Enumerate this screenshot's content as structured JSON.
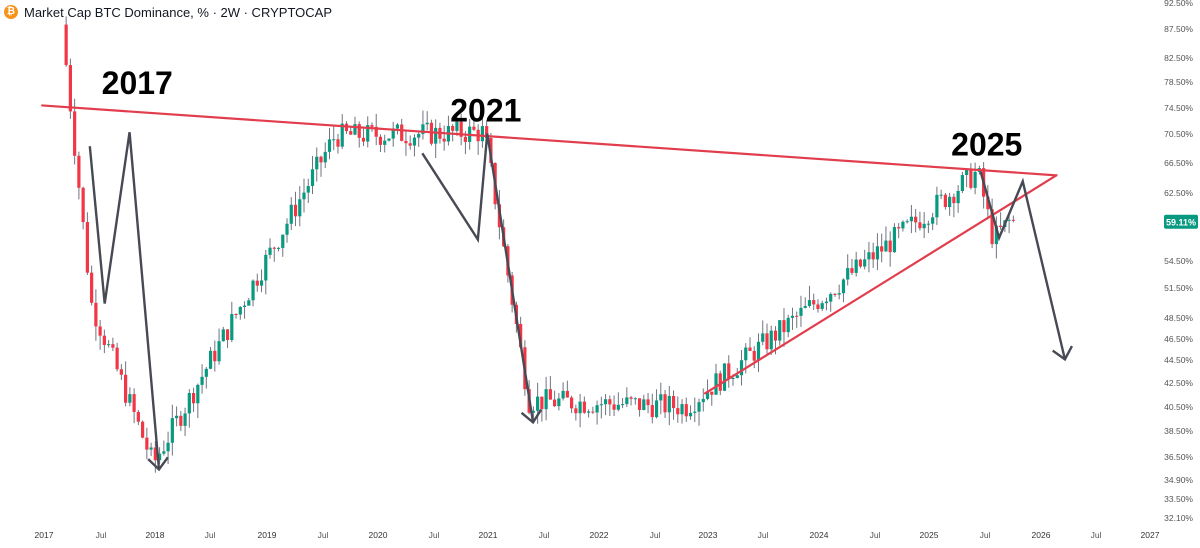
{
  "header": {
    "logo_icon": "bitcoin-icon",
    "title": "Market Cap BTC Dominance, % · 2W · CRYPTOCAP"
  },
  "price_label": {
    "value": "59.11%",
    "color": "#089981"
  },
  "colors": {
    "up": "#089981",
    "down": "#f23645",
    "wick": "#707480",
    "trendline": "#e23d4d",
    "arrow": "#474a54",
    "axis_text": "#555555"
  },
  "annotations": [
    {
      "text": "2017",
      "x": "2017-07-10",
      "y": 76.8
    },
    {
      "text": "2021",
      "x": "2020-09-01",
      "y": 72.6
    },
    {
      "text": "2025",
      "x": "2025-03-10",
      "y": 67.7
    }
  ],
  "chart_data": {
    "type": "candlestick",
    "title": "Market Cap BTC Dominance, % · 2W · CRYPTOCAP",
    "y_unit": "%",
    "x_ticks": [
      "2017",
      "Jul",
      "2018",
      "Jul",
      "2019",
      "Jul",
      "2020",
      "Jul",
      "2021",
      "Jul",
      "2022",
      "Jul",
      "2023",
      "Jul",
      "2024",
      "Jul",
      "2025",
      "Jul",
      "2026",
      "Jul",
      "2027"
    ],
    "y_ticks": [
      "92.50%",
      "87.50%",
      "82.50%",
      "78.50%",
      "74.50%",
      "70.50%",
      "66.50%",
      "62.50%",
      "58.50%",
      "54.50%",
      "51.50%",
      "48.50%",
      "46.50%",
      "44.50%",
      "42.50%",
      "40.50%",
      "38.50%",
      "36.50%",
      "34.90%",
      "33.50%",
      "32.10%"
    ],
    "x_range": [
      "2017-01-01",
      "2027-01-01"
    ],
    "y_range_log": [
      32.1,
      92.5
    ],
    "last_value": 59.11,
    "grid": false,
    "key_points": [
      {
        "x": "2017-03-15",
        "y": 88.5
      },
      {
        "x": "2017-06-20",
        "y": 50.0
      },
      {
        "x": "2018-01-10",
        "y": 36.0
      },
      {
        "x": "2019-09-01",
        "y": 70.5
      },
      {
        "x": "2021-01-05",
        "y": 71.0
      },
      {
        "x": "2021-06-01",
        "y": 41.0
      },
      {
        "x": "2022-11-01",
        "y": 40.5
      },
      {
        "x": "2025-06-20",
        "y": 65.5
      },
      {
        "x": "2025-08-10",
        "y": 57.0
      },
      {
        "x": "2025-10-01",
        "y": 59.11
      }
    ],
    "trendlines": [
      {
        "name": "resistance",
        "points": [
          {
            "x": "2016-12-26",
            "y": 75.0
          },
          {
            "x": "2026-02-20",
            "y": 65.0
          }
        ]
      },
      {
        "name": "support",
        "points": [
          {
            "x": "2022-12-20",
            "y": 41.6
          },
          {
            "x": "2026-02-20",
            "y": 65.0
          }
        ]
      }
    ],
    "arrows": [
      {
        "points": [
          {
            "x": "2017-06-01",
            "y": 69
          },
          {
            "x": "2017-07-20",
            "y": 50
          },
          {
            "x": "2017-10-10",
            "y": 71
          },
          {
            "x": "2018-01-15",
            "y": 35.6
          }
        ]
      },
      {
        "points": [
          {
            "x": "2020-06-01",
            "y": 68
          },
          {
            "x": "2020-12-01",
            "y": 57.0
          },
          {
            "x": "2021-01-01",
            "y": 70.8
          },
          {
            "x": "2021-06-01",
            "y": 39.2
          }
        ]
      },
      {
        "points": [
          {
            "x": "2025-06-15",
            "y": 65.5
          },
          {
            "x": "2025-08-15",
            "y": 57.2
          },
          {
            "x": "2025-11-01",
            "y": 64.2
          },
          {
            "x": "2026-03-20",
            "y": 44.6
          }
        ]
      }
    ]
  }
}
